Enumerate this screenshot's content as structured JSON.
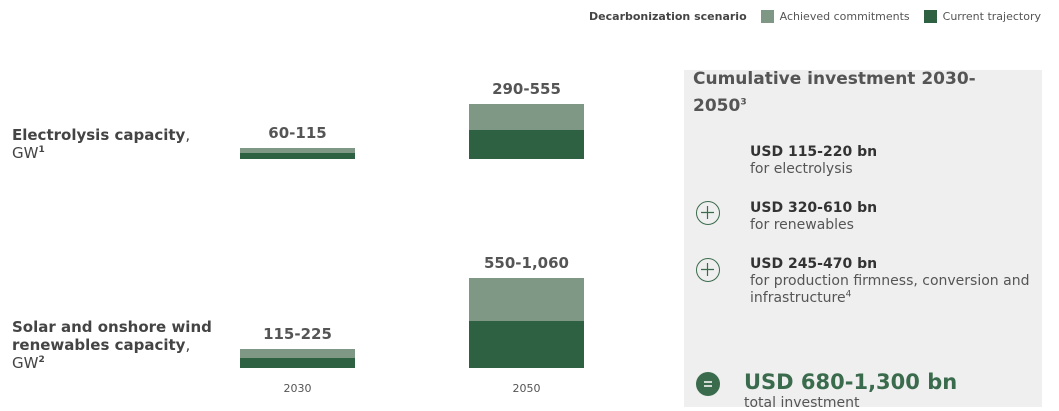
{
  "legend": {
    "title": "Decarbonization scenario",
    "items": [
      {
        "name": "Achieved commitments",
        "color": "#7e9885"
      },
      {
        "name": "Current trajectory",
        "color": "#2d6142"
      }
    ]
  },
  "years": [
    "2030",
    "2050"
  ],
  "rows": [
    {
      "label": "Electrolysis capacity",
      "unit": ", GW",
      "note": "1",
      "bars": [
        {
          "low": 60,
          "high": 115,
          "label": "60-115"
        },
        {
          "low": 290,
          "high": 555,
          "label": "290-555"
        }
      ]
    },
    {
      "label": "Solar and onshore wind renewables capacity",
      "unit": ", GW",
      "note": "2",
      "bars": [
        {
          "low": 115,
          "high": 225,
          "label": "115-225"
        },
        {
          "low": 550,
          "high": 1060,
          "label": "550-1,060"
        }
      ]
    }
  ],
  "panel": {
    "title": "Cumulative investment 2030-2050",
    "title_note": "3",
    "items": [
      {
        "amount": "USD 115-220 bn",
        "text": "for electrolysis"
      },
      {
        "amount": "USD 320-610 bn",
        "text": "for renewables"
      },
      {
        "amount": "USD 245-470 bn",
        "text": "for production firmness, conversion and infrastructure",
        "note": "4"
      }
    ],
    "total": {
      "amount": "USD 680-1,300 bn",
      "text": "total investment"
    }
  }
}
